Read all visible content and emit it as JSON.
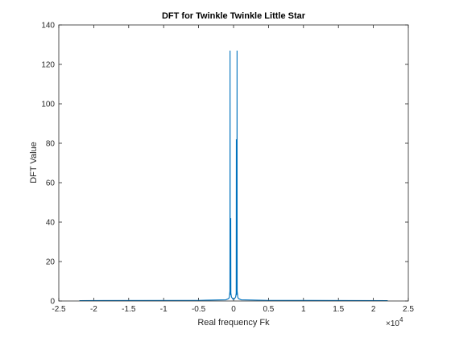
{
  "chart_data": {
    "type": "line",
    "title": "DFT for Twinkle Twinkle Little Star",
    "xlabel": "Real frequency Fk",
    "ylabel": "DFT Value",
    "x_exponent_label": "×10",
    "x_exponent_power": "4",
    "xlim": [
      -25000,
      25000
    ],
    "ylim": [
      0,
      140
    ],
    "xticks": [
      -25000,
      -20000,
      -15000,
      -10000,
      -5000,
      0,
      5000,
      10000,
      15000,
      20000,
      25000
    ],
    "xtick_labels": [
      "-2.5",
      "-2",
      "-1.5",
      "-1",
      "-0.5",
      "0",
      "0.5",
      "1",
      "1.5",
      "2",
      "2.5"
    ],
    "yticks": [
      0,
      20,
      40,
      60,
      80,
      100,
      120,
      140
    ],
    "ytick_labels": [
      "0",
      "20",
      "40",
      "60",
      "80",
      "100",
      "120",
      "140"
    ],
    "grid": false,
    "series": [
      {
        "color": "#0072bd",
        "x": [
          -22050,
          -5000,
          -1100,
          -700,
          -600,
          -520,
          -500,
          -480,
          -420,
          -400,
          -380,
          -300,
          -200,
          -100,
          0,
          100,
          200,
          300,
          380,
          400,
          420,
          480,
          500,
          520,
          600,
          700,
          1100,
          5000,
          22050
        ],
        "y": [
          0.2,
          0.3,
          0.6,
          1.2,
          2,
          5,
          127,
          6,
          3,
          42,
          4,
          2,
          1.5,
          1,
          0.8,
          1,
          1.5,
          2,
          4,
          82,
          3,
          6,
          127,
          5,
          2,
          1.2,
          0.6,
          0.3,
          0.2
        ]
      }
    ]
  }
}
